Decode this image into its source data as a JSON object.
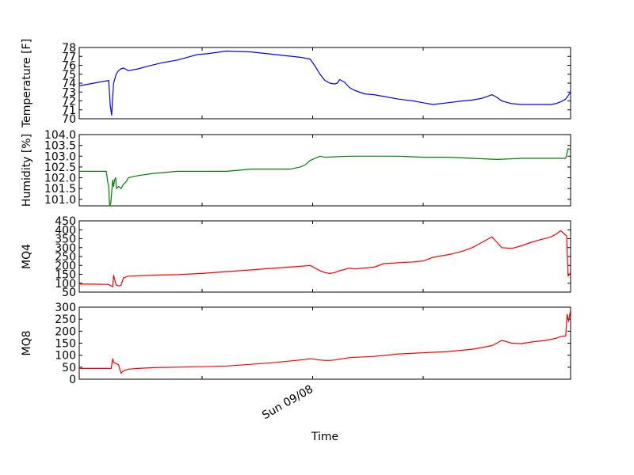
{
  "figure": {
    "xlabel": "Time",
    "x_tick_label": "Sun 09/08"
  },
  "chart_data": [
    {
      "type": "line",
      "ylabel": "Temperature [F]",
      "ylim": [
        70,
        78
      ],
      "yticks": [
        70,
        71,
        72,
        73,
        74,
        75,
        76,
        77,
        78
      ],
      "color": "#0000ff",
      "series": [
        {
          "x": [
            0,
            0.03,
            0.06,
            0.063,
            0.066,
            0.068,
            0.07,
            0.075,
            0.08,
            0.085,
            0.09,
            0.1,
            0.12,
            0.14,
            0.17,
            0.2,
            0.22,
            0.24,
            0.26,
            0.3,
            0.35,
            0.4,
            0.45,
            0.47,
            0.48,
            0.49,
            0.5,
            0.51,
            0.52,
            0.525,
            0.53,
            0.54,
            0.55,
            0.56,
            0.58,
            0.6,
            0.62,
            0.65,
            0.68,
            0.7,
            0.72,
            0.75,
            0.78,
            0.8,
            0.82,
            0.83,
            0.84,
            0.85,
            0.86,
            0.88,
            0.9,
            0.94,
            0.96,
            0.97,
            0.98,
            0.99,
            1.0
          ],
          "y": [
            73.7,
            74.0,
            74.3,
            71.5,
            70.4,
            72.5,
            74.0,
            75.0,
            75.4,
            75.6,
            75.7,
            75.4,
            75.6,
            75.9,
            76.3,
            76.6,
            76.9,
            77.2,
            77.3,
            77.6,
            77.5,
            77.2,
            76.9,
            76.7,
            75.9,
            75.0,
            74.3,
            74.0,
            73.9,
            74.0,
            74.4,
            74.1,
            73.5,
            73.2,
            72.8,
            72.7,
            72.5,
            72.2,
            72.0,
            71.8,
            71.6,
            71.8,
            72.0,
            72.1,
            72.3,
            72.5,
            72.7,
            72.4,
            72.0,
            71.7,
            71.6,
            71.6,
            71.6,
            71.7,
            71.9,
            72.2,
            73.0
          ]
        }
      ]
    },
    {
      "type": "line",
      "ylabel": "Humidity [%]",
      "ylim": [
        100.7,
        104.0
      ],
      "yticks": [
        101.0,
        101.5,
        102.0,
        102.5,
        103.0,
        103.5,
        104.0
      ],
      "color": "#008000",
      "series": [
        {
          "x": [
            0,
            0.03,
            0.055,
            0.058,
            0.06,
            0.062,
            0.064,
            0.066,
            0.068,
            0.07,
            0.072,
            0.074,
            0.076,
            0.08,
            0.085,
            0.09,
            0.095,
            0.1,
            0.12,
            0.15,
            0.2,
            0.25,
            0.3,
            0.35,
            0.4,
            0.43,
            0.45,
            0.46,
            0.47,
            0.48,
            0.49,
            0.5,
            0.55,
            0.6,
            0.65,
            0.7,
            0.75,
            0.8,
            0.85,
            0.9,
            0.95,
            0.99,
            0.995,
            1.0
          ],
          "y": [
            102.3,
            102.3,
            102.3,
            101.8,
            101.6,
            100.7,
            100.8,
            101.3,
            101.9,
            101.6,
            101.9,
            102.0,
            101.5,
            101.6,
            101.5,
            101.7,
            101.8,
            102.0,
            102.1,
            102.2,
            102.3,
            102.3,
            102.3,
            102.4,
            102.4,
            102.4,
            102.5,
            102.6,
            102.8,
            102.9,
            103.0,
            102.95,
            103.0,
            103.0,
            103.0,
            102.95,
            102.95,
            102.9,
            102.85,
            102.9,
            102.9,
            102.9,
            103.35,
            103.3
          ]
        }
      ]
    },
    {
      "type": "line",
      "ylabel": "MQ4",
      "ylim": [
        50,
        450
      ],
      "yticks": [
        50,
        100,
        150,
        200,
        250,
        300,
        350,
        400,
        450
      ],
      "color": "#ff0000",
      "series": [
        {
          "x": [
            0,
            0.03,
            0.06,
            0.068,
            0.07,
            0.075,
            0.08,
            0.085,
            0.09,
            0.095,
            0.1,
            0.15,
            0.2,
            0.25,
            0.3,
            0.35,
            0.4,
            0.45,
            0.47,
            0.49,
            0.5,
            0.51,
            0.52,
            0.53,
            0.55,
            0.56,
            0.58,
            0.6,
            0.62,
            0.65,
            0.68,
            0.7,
            0.71,
            0.72,
            0.74,
            0.76,
            0.78,
            0.8,
            0.82,
            0.83,
            0.84,
            0.85,
            0.86,
            0.88,
            0.9,
            0.92,
            0.94,
            0.96,
            0.97,
            0.98,
            0.99,
            0.992,
            0.995,
            1.0
          ],
          "y": [
            95,
            95,
            93,
            80,
            145,
            90,
            85,
            88,
            130,
            135,
            140,
            145,
            148,
            155,
            165,
            175,
            185,
            195,
            200,
            170,
            160,
            155,
            160,
            170,
            185,
            180,
            185,
            190,
            210,
            215,
            220,
            225,
            235,
            245,
            255,
            265,
            280,
            300,
            330,
            345,
            360,
            330,
            300,
            295,
            310,
            330,
            345,
            360,
            375,
            395,
            370,
            365,
            140,
            160
          ]
        }
      ]
    },
    {
      "type": "line",
      "ylabel": "MQ8",
      "ylim": [
        0,
        300
      ],
      "yticks": [
        0,
        50,
        100,
        150,
        200,
        250,
        300
      ],
      "color": "#ff0000",
      "series": [
        {
          "x": [
            0,
            0.03,
            0.065,
            0.068,
            0.07,
            0.075,
            0.08,
            0.085,
            0.09,
            0.1,
            0.12,
            0.15,
            0.2,
            0.25,
            0.3,
            0.35,
            0.4,
            0.45,
            0.47,
            0.49,
            0.5,
            0.51,
            0.52,
            0.55,
            0.6,
            0.65,
            0.7,
            0.75,
            0.8,
            0.82,
            0.84,
            0.85,
            0.86,
            0.88,
            0.9,
            0.92,
            0.95,
            0.97,
            0.98,
            0.99,
            0.993,
            0.996,
            1.0
          ],
          "y": [
            45,
            45,
            45,
            85,
            70,
            65,
            60,
            25,
            35,
            42,
            45,
            48,
            50,
            52,
            55,
            62,
            70,
            80,
            85,
            80,
            78,
            78,
            80,
            90,
            95,
            105,
            110,
            115,
            125,
            132,
            140,
            150,
            162,
            150,
            148,
            155,
            162,
            170,
            178,
            180,
            270,
            240,
            290
          ]
        }
      ]
    }
  ]
}
